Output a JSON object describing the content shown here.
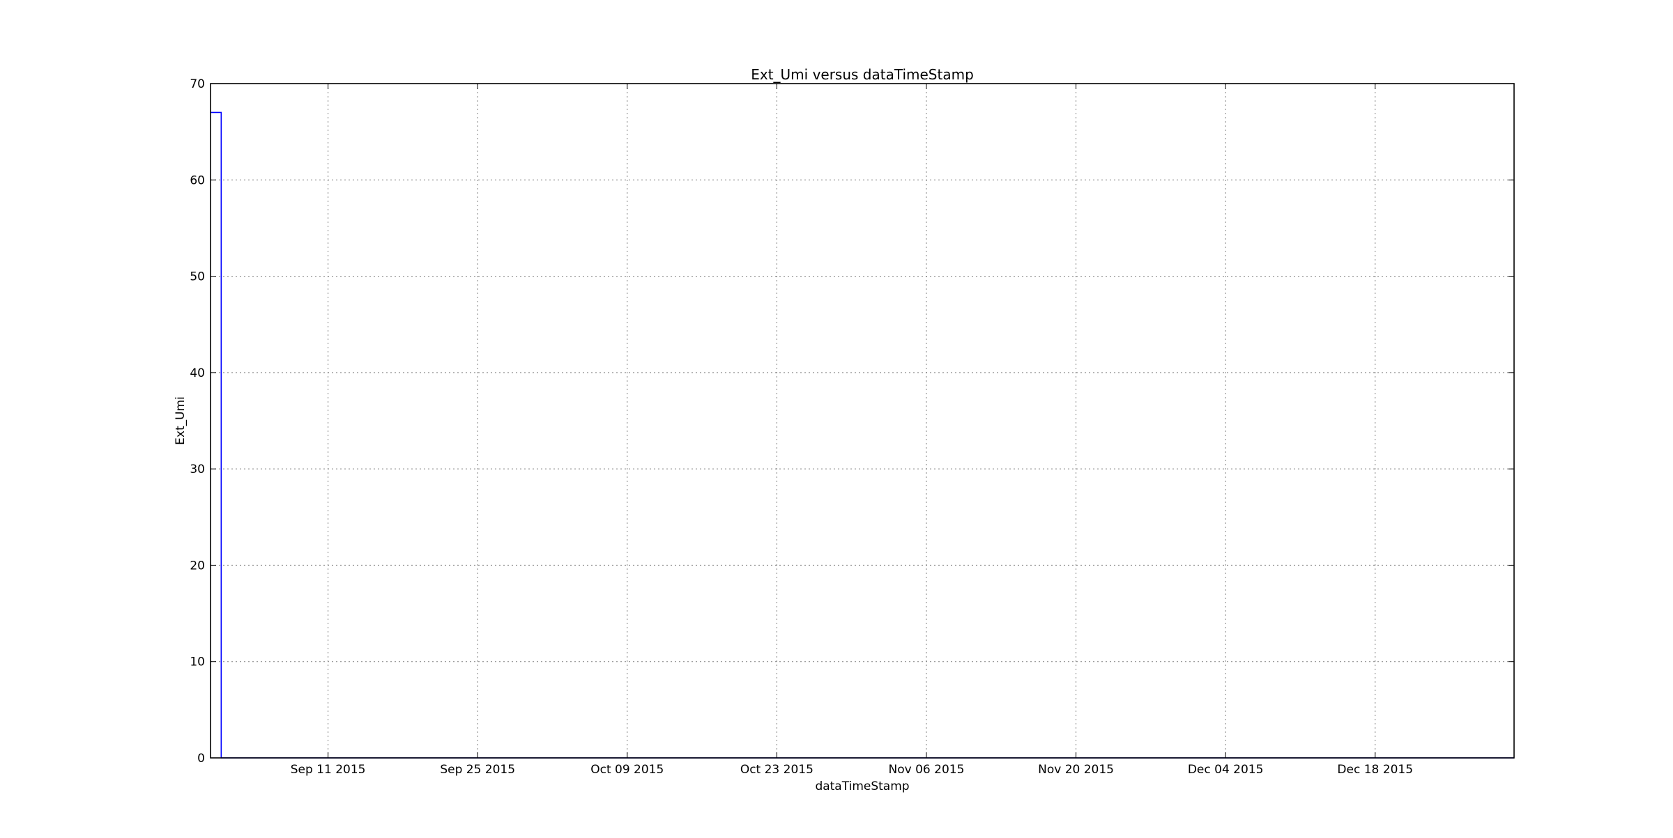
{
  "chart_data": {
    "type": "line",
    "title": "Ext_Umi versus dataTimeStamp",
    "xlabel": "dataTimeStamp",
    "ylabel": "Ext_Umi",
    "xlim": [
      "2015-08-31",
      "2015-12-31"
    ],
    "ylim": [
      0,
      70
    ],
    "x_ticks": [
      "2015-09-11",
      "2015-09-25",
      "2015-10-09",
      "2015-10-23",
      "2015-11-06",
      "2015-11-20",
      "2015-12-04",
      "2015-12-18"
    ],
    "x_tick_labels": [
      "Sep 11 2015",
      "Sep 25 2015",
      "Oct 09 2015",
      "Oct 23 2015",
      "Nov 06 2015",
      "Nov 20 2015",
      "Dec 04 2015",
      "Dec 18 2015"
    ],
    "y_ticks": [
      0,
      10,
      20,
      30,
      40,
      50,
      60,
      70
    ],
    "grid": true,
    "step": "post",
    "series": [
      {
        "color": "#0000ff",
        "points": [
          {
            "x": "2015-08-31",
            "y": 67
          },
          {
            "x": "2015-09-01",
            "y": 0
          },
          {
            "x": "2015-12-31",
            "y": 0
          }
        ]
      }
    ]
  }
}
